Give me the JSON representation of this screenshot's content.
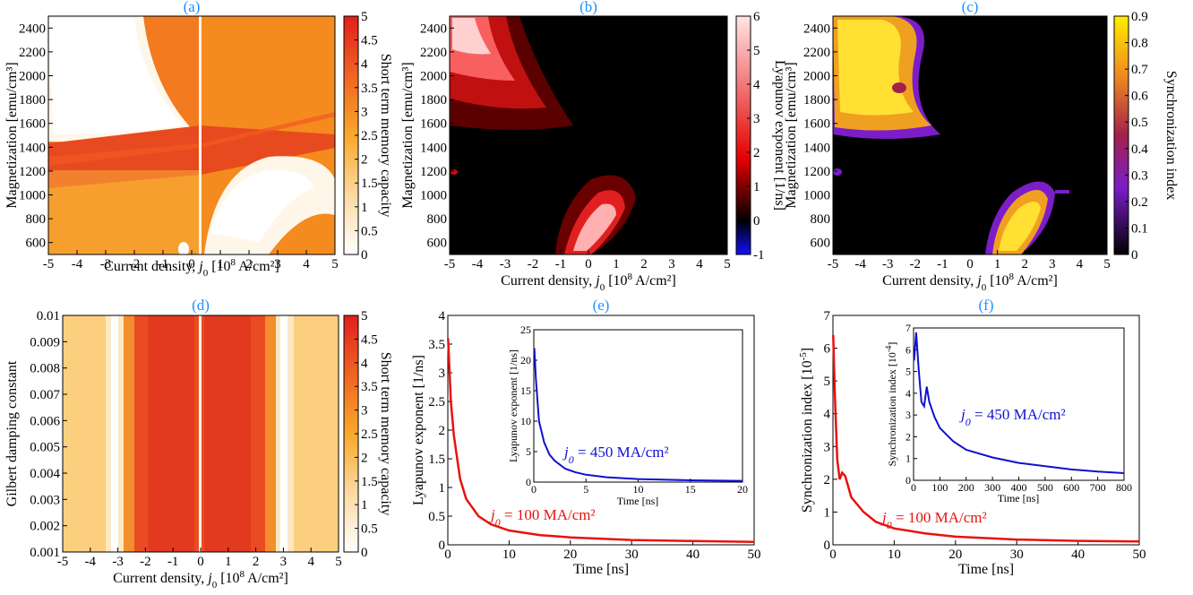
{
  "chart_data": [
    {
      "panel": "(a)",
      "type": "heatmap",
      "xlabel_main": "Current density, ",
      "xlabel_sym": "j",
      "xlabel_sub": "0",
      "xlabel_rest": " [10",
      "xlabel_sup": "8",
      "xlabel_tail": " A/cm²]",
      "ylabel": "Magnetization [emu/cm³]",
      "xlim": [
        -5,
        5
      ],
      "ylim": [
        500,
        2500
      ],
      "xticks": [
        "-5",
        "-4",
        "-3",
        "-2",
        "-1",
        "0",
        "1",
        "2",
        "3",
        "4",
        "5"
      ],
      "yticks": [
        "600",
        "800",
        "1000",
        "1200",
        "1400",
        "1600",
        "1800",
        "2000",
        "2200",
        "2400"
      ],
      "colorbar": {
        "label": "Short term memory capacity",
        "range": [
          0,
          5
        ],
        "ticks": [
          "0",
          "0.5",
          "1",
          "1.5",
          "2",
          "2.5",
          "3",
          "3.5",
          "4",
          "4.5",
          "5"
        ],
        "colormap": "white-orange-red"
      }
    },
    {
      "panel": "(b)",
      "type": "heatmap",
      "xlabel_main": "Current density, ",
      "xlabel_sym": "j",
      "xlabel_sub": "0",
      "xlabel_rest": " [10",
      "xlabel_sup": "8",
      "xlabel_tail": " A/cm²]",
      "ylabel": "Magnetization [emu/cm³]",
      "xlim": [
        -5,
        5
      ],
      "ylim": [
        500,
        2500
      ],
      "xticks": [
        "-5",
        "-4",
        "-3",
        "-2",
        "-1",
        "0",
        "1",
        "2",
        "3",
        "4",
        "5"
      ],
      "yticks": [
        "600",
        "800",
        "1000",
        "1200",
        "1400",
        "1600",
        "1800",
        "2000",
        "2200",
        "2400"
      ],
      "colorbar": {
        "label": "Lyapunov exponent [1/ns]",
        "range": [
          -1,
          6
        ],
        "ticks": [
          "-1",
          "0",
          "1",
          "2",
          "3",
          "4",
          "5",
          "6"
        ],
        "colormap": "blue-black-red-pink"
      }
    },
    {
      "panel": "(c)",
      "type": "heatmap",
      "xlabel_main": "Current density, ",
      "xlabel_sym": "j",
      "xlabel_sub": "0",
      "xlabel_rest": " [10",
      "xlabel_sup": "8",
      "xlabel_tail": " A/cm²]",
      "ylabel": "Magnetization [emu/cm³]",
      "xlim": [
        -5,
        5
      ],
      "ylim": [
        500,
        2500
      ],
      "xticks": [
        "-5",
        "-4",
        "-3",
        "-2",
        "-1",
        "0",
        "1",
        "2",
        "3",
        "4",
        "5"
      ],
      "yticks": [
        "600",
        "800",
        "1000",
        "1200",
        "1400",
        "1600",
        "1800",
        "2000",
        "2200",
        "2400"
      ],
      "colorbar": {
        "label": "Synchronization index",
        "range": [
          0,
          0.9
        ],
        "ticks": [
          "0",
          "0.1",
          "0.2",
          "0.3",
          "0.4",
          "0.5",
          "0.6",
          "0.7",
          "0.8",
          "0.9"
        ],
        "colormap": "black-purple-orange-yellow"
      }
    },
    {
      "panel": "(d)",
      "type": "heatmap",
      "xlabel_main": "Current density, ",
      "xlabel_sym": "j",
      "xlabel_sub": "0",
      "xlabel_rest": " [10",
      "xlabel_sup": "8",
      "xlabel_tail": " A/cm²]",
      "ylabel": "Gilbert damping constant",
      "xlim": [
        -5,
        5
      ],
      "ylim": [
        0.001,
        0.01
      ],
      "xticks": [
        "-5",
        "-4",
        "-3",
        "-2",
        "-1",
        "0",
        "1",
        "2",
        "3",
        "4",
        "5"
      ],
      "yticks": [
        "0.001",
        "0.002",
        "0.003",
        "0.004",
        "0.005",
        "0.006",
        "0.007",
        "0.008",
        "0.009",
        "0.01"
      ],
      "colorbar": {
        "label": "Short term memory capacity",
        "range": [
          0,
          5
        ],
        "ticks": [
          "0",
          "0.5",
          "1",
          "1.5",
          "2",
          "2.5",
          "3",
          "3.5",
          "4",
          "4.5",
          "5"
        ],
        "colormap": "white-orange-red"
      }
    },
    {
      "panel": "(e)",
      "type": "line",
      "xlabel": "Time [ns]",
      "ylabel": "Lyapunov exponent [1/ns]",
      "xlim": [
        0,
        50
      ],
      "ylim": [
        0,
        4
      ],
      "xticks": [
        "0",
        "10",
        "20",
        "30",
        "40",
        "50"
      ],
      "yticks": [
        "0",
        "0.5",
        "1",
        "1.5",
        "2",
        "2.5",
        "3",
        "3.5",
        "4"
      ],
      "series": [
        {
          "color": "#e8120c",
          "x": [
            0.05,
            0.5,
            1,
            2,
            3,
            5,
            7,
            10,
            15,
            20,
            30,
            40,
            50
          ],
          "y": [
            3.6,
            2.5,
            1.9,
            1.15,
            0.8,
            0.5,
            0.36,
            0.25,
            0.17,
            0.13,
            0.085,
            0.065,
            0.05
          ]
        }
      ],
      "annotation": {
        "sym": "j",
        "sub": "0",
        "text": " = 100 MA/cm²",
        "color": "#e8120c"
      },
      "inset": {
        "xlabel": "Time [ns]",
        "ylabel": "Lyapunov exponent [1/ns]",
        "xlim": [
          0,
          20
        ],
        "ylim": [
          0,
          25
        ],
        "xticks": [
          "0",
          "5",
          "10",
          "15",
          "20"
        ],
        "yticks": [
          "0",
          "5",
          "10",
          "15",
          "20",
          "25"
        ],
        "series": [
          {
            "color": "#1010d0",
            "x": [
              0.05,
              0.2,
              0.5,
              1,
              1.5,
              2,
              3,
              4,
              5,
              7,
              10,
              15,
              20
            ],
            "y": [
              22,
              17,
              10,
              6.5,
              4.5,
              3.5,
              2.2,
              1.6,
              1.2,
              0.8,
              0.5,
              0.3,
              0.2
            ]
          }
        ],
        "annotation": {
          "sym": "j",
          "sub": "0",
          "text": " = 450 MA/cm²",
          "color": "#1010d0"
        }
      }
    },
    {
      "panel": "(f)",
      "type": "line",
      "xlabel": "Time [ns]",
      "ylabel_main": "Synchronization index [10",
      "ylabel_sup": "-5",
      "ylabel_tail": "]",
      "xlim": [
        0,
        50
      ],
      "ylim": [
        0,
        7
      ],
      "xticks": [
        "0",
        "10",
        "20",
        "30",
        "40",
        "50"
      ],
      "yticks": [
        "0",
        "1",
        "2",
        "3",
        "4",
        "5",
        "6",
        "7"
      ],
      "series": [
        {
          "color": "#e8120c",
          "x": [
            0.05,
            0.3,
            0.7,
            1.1,
            1.5,
            2,
            3,
            5,
            7,
            10,
            15,
            20,
            30,
            40,
            50
          ],
          "y": [
            6.4,
            4.6,
            2.6,
            2.0,
            2.2,
            2.1,
            1.45,
            1.0,
            0.7,
            0.5,
            0.35,
            0.25,
            0.16,
            0.12,
            0.1
          ]
        }
      ],
      "annotation": {
        "sym": "j",
        "sub": "0",
        "text": " = 100 MA/cm²",
        "color": "#e8120c"
      },
      "inset": {
        "xlabel": "Time [ns]",
        "ylabel_main": "Synchronization index [10",
        "ylabel_sup": "-4",
        "ylabel_tail": "]",
        "xlim": [
          0,
          800
        ],
        "ylim": [
          0,
          7
        ],
        "xticks": [
          "0",
          "100",
          "200",
          "300",
          "400",
          "500",
          "600",
          "700",
          "800"
        ],
        "yticks": [
          "0",
          "1",
          "2",
          "3",
          "4",
          "5",
          "6",
          "7"
        ],
        "series": [
          {
            "color": "#1010d0",
            "x": [
              2,
              10,
              20,
              30,
              40,
              50,
              60,
              80,
              100,
              150,
              200,
              300,
              400,
              500,
              600,
              700,
              800
            ],
            "y": [
              5.5,
              6.8,
              5.0,
              3.6,
              3.4,
              4.3,
              3.6,
              2.9,
              2.4,
              1.8,
              1.4,
              1.05,
              0.8,
              0.65,
              0.5,
              0.4,
              0.33
            ]
          }
        ],
        "annotation": {
          "sym": "j",
          "sub": "0",
          "text": " = 450 MA/cm²",
          "color": "#1010d0"
        }
      }
    }
  ]
}
